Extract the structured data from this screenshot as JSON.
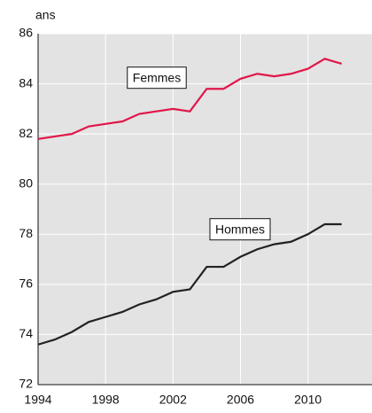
{
  "chart_data": {
    "type": "line",
    "y_axis_label": "ans",
    "x": [
      1994,
      1995,
      1996,
      1997,
      1998,
      1999,
      2000,
      2001,
      2002,
      2003,
      2004,
      2005,
      2006,
      2007,
      2008,
      2009,
      2010,
      2011,
      2012
    ],
    "series": [
      {
        "name": "Femmes",
        "color": "#e0174a",
        "values": [
          81.8,
          81.9,
          82.0,
          82.3,
          82.4,
          82.5,
          82.8,
          82.9,
          83.0,
          82.9,
          83.8,
          83.8,
          84.2,
          84.4,
          84.3,
          84.4,
          84.6,
          85.0,
          84.8
        ]
      },
      {
        "name": "Hommes",
        "color": "#222222",
        "values": [
          73.6,
          73.8,
          74.1,
          74.5,
          74.7,
          74.9,
          75.2,
          75.4,
          75.7,
          75.8,
          76.7,
          76.7,
          77.1,
          77.4,
          77.6,
          77.7,
          78.0,
          78.4,
          78.4
        ]
      }
    ],
    "xlim": [
      1994,
      2013.8
    ],
    "xticks": [
      1994,
      1998,
      2002,
      2006,
      2010
    ],
    "ylim": [
      72,
      86
    ],
    "yticks": [
      72,
      74,
      76,
      78,
      80,
      82,
      84,
      86
    ],
    "grid": true
  }
}
